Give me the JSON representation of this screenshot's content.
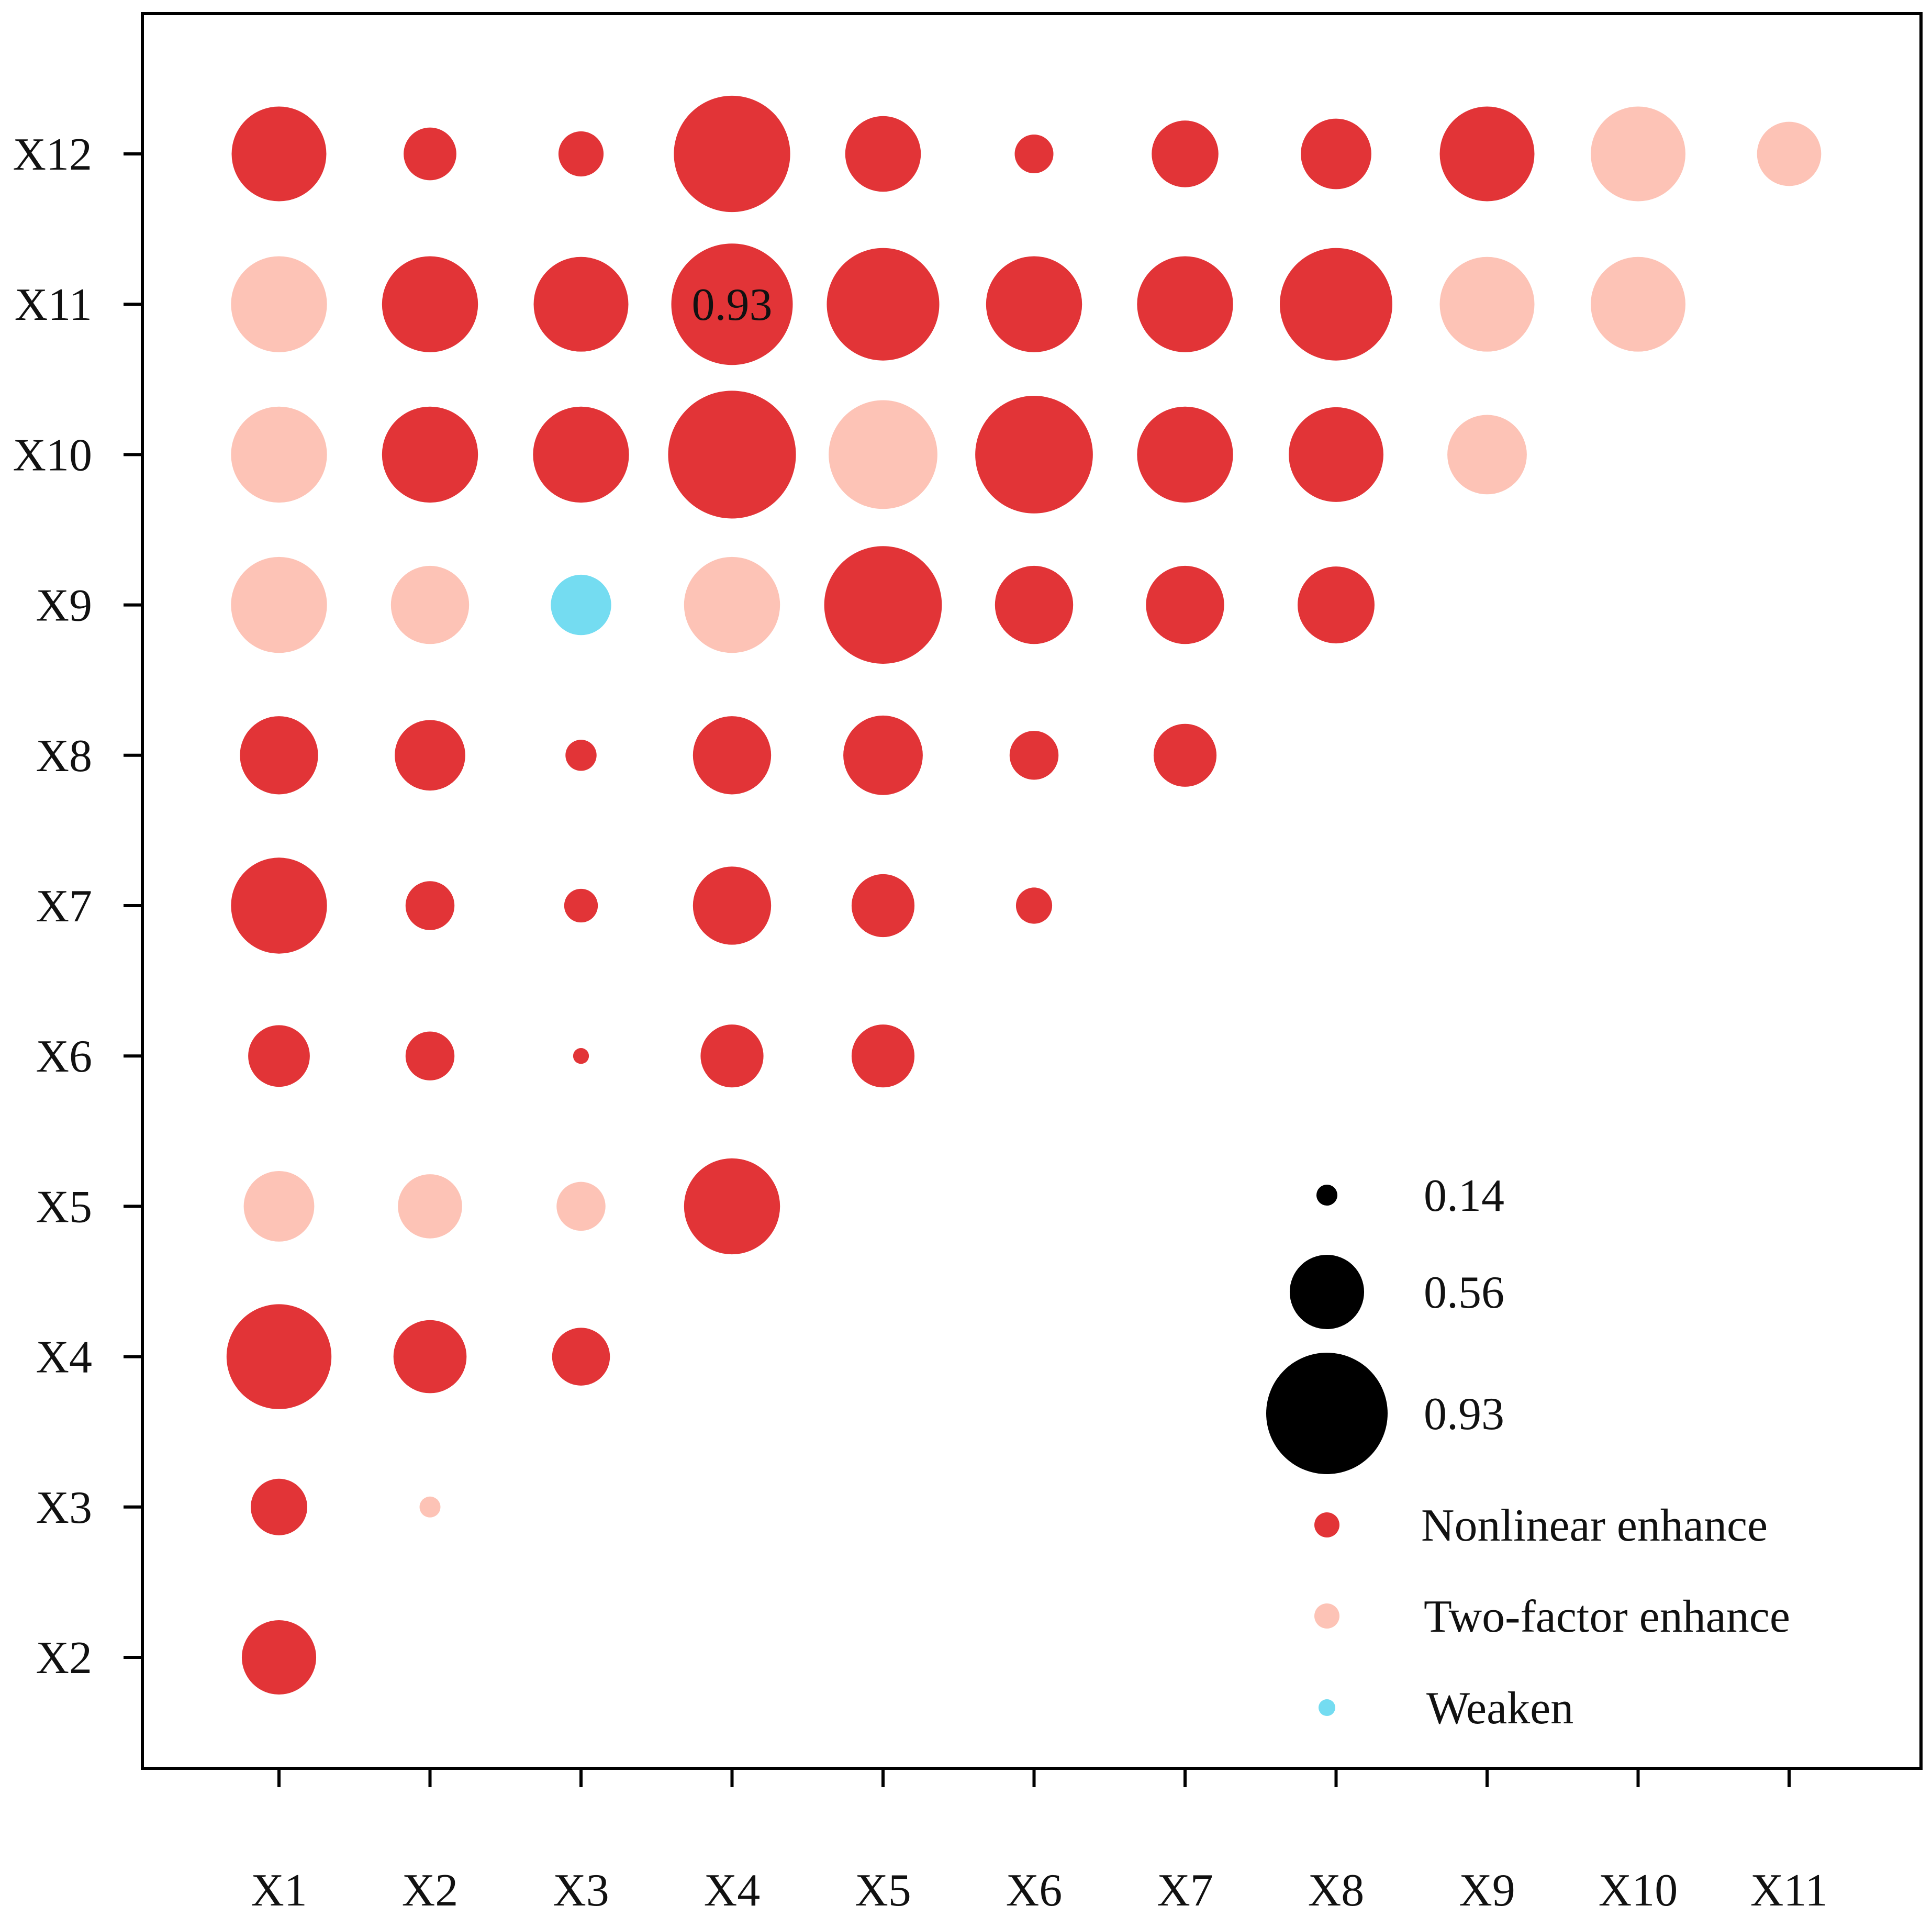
{
  "chart_data": {
    "type": "bubble-matrix",
    "title": "",
    "xlabel": "",
    "ylabel": "",
    "x_categories": [
      "X1",
      "X2",
      "X3",
      "X4",
      "X5",
      "X6",
      "X7",
      "X8",
      "X9",
      "X10",
      "X11"
    ],
    "y_categories": [
      "X2",
      "X3",
      "X4",
      "X5",
      "X6",
      "X7",
      "X8",
      "X9",
      "X10",
      "X11",
      "X12"
    ],
    "size_scale": {
      "min": 0.14,
      "max": 0.93
    },
    "colors": {
      "nonlinear": "#e23437",
      "two_factor": "#fdc3b6",
      "weaken": "#74dcf1"
    },
    "points": [
      {
        "x": "X1",
        "y": "X2",
        "value": 0.56,
        "type": "nonlinear"
      },
      {
        "x": "X1",
        "y": "X3",
        "value": 0.42,
        "type": "nonlinear"
      },
      {
        "x": "X2",
        "y": "X3",
        "value": 0.14,
        "type": "two_factor"
      },
      {
        "x": "X1",
        "y": "X4",
        "value": 0.8,
        "type": "nonlinear"
      },
      {
        "x": "X2",
        "y": "X4",
        "value": 0.55,
        "type": "nonlinear"
      },
      {
        "x": "X3",
        "y": "X4",
        "value": 0.43,
        "type": "nonlinear"
      },
      {
        "x": "X1",
        "y": "X5",
        "value": 0.53,
        "type": "two_factor"
      },
      {
        "x": "X2",
        "y": "X5",
        "value": 0.48,
        "type": "two_factor"
      },
      {
        "x": "X3",
        "y": "X5",
        "value": 0.36,
        "type": "two_factor"
      },
      {
        "x": "X4",
        "y": "X5",
        "value": 0.73,
        "type": "nonlinear"
      },
      {
        "x": "X1",
        "y": "X6",
        "value": 0.46,
        "type": "nonlinear"
      },
      {
        "x": "X2",
        "y": "X6",
        "value": 0.36,
        "type": "nonlinear"
      },
      {
        "x": "X3",
        "y": "X6",
        "value": 0.1,
        "type": "nonlinear"
      },
      {
        "x": "X4",
        "y": "X6",
        "value": 0.47,
        "type": "nonlinear"
      },
      {
        "x": "X5",
        "y": "X6",
        "value": 0.47,
        "type": "nonlinear"
      },
      {
        "x": "X1",
        "y": "X7",
        "value": 0.73,
        "type": "nonlinear"
      },
      {
        "x": "X2",
        "y": "X7",
        "value": 0.36,
        "type": "nonlinear"
      },
      {
        "x": "X3",
        "y": "X7",
        "value": 0.24,
        "type": "nonlinear"
      },
      {
        "x": "X4",
        "y": "X7",
        "value": 0.59,
        "type": "nonlinear"
      },
      {
        "x": "X5",
        "y": "X7",
        "value": 0.47,
        "type": "nonlinear"
      },
      {
        "x": "X6",
        "y": "X7",
        "value": 0.26,
        "type": "nonlinear"
      },
      {
        "x": "X1",
        "y": "X8",
        "value": 0.59,
        "type": "nonlinear"
      },
      {
        "x": "X2",
        "y": "X8",
        "value": 0.53,
        "type": "nonlinear"
      },
      {
        "x": "X3",
        "y": "X8",
        "value": 0.22,
        "type": "nonlinear"
      },
      {
        "x": "X4",
        "y": "X8",
        "value": 0.59,
        "type": "nonlinear"
      },
      {
        "x": "X5",
        "y": "X8",
        "value": 0.6,
        "type": "nonlinear"
      },
      {
        "x": "X6",
        "y": "X8",
        "value": 0.36,
        "type": "nonlinear"
      },
      {
        "x": "X7",
        "y": "X8",
        "value": 0.47,
        "type": "nonlinear"
      },
      {
        "x": "X1",
        "y": "X9",
        "value": 0.73,
        "type": "two_factor"
      },
      {
        "x": "X2",
        "y": "X9",
        "value": 0.59,
        "type": "two_factor"
      },
      {
        "x": "X3",
        "y": "X9",
        "value": 0.45,
        "type": "weaken"
      },
      {
        "x": "X4",
        "y": "X9",
        "value": 0.73,
        "type": "two_factor"
      },
      {
        "x": "X5",
        "y": "X9",
        "value": 0.9,
        "type": "nonlinear"
      },
      {
        "x": "X6",
        "y": "X9",
        "value": 0.59,
        "type": "nonlinear"
      },
      {
        "x": "X7",
        "y": "X9",
        "value": 0.59,
        "type": "nonlinear"
      },
      {
        "x": "X8",
        "y": "X9",
        "value": 0.58,
        "type": "nonlinear"
      },
      {
        "x": "X1",
        "y": "X10",
        "value": 0.73,
        "type": "two_factor"
      },
      {
        "x": "X2",
        "y": "X10",
        "value": 0.73,
        "type": "nonlinear"
      },
      {
        "x": "X3",
        "y": "X10",
        "value": 0.73,
        "type": "nonlinear"
      },
      {
        "x": "X4",
        "y": "X10",
        "value": 0.98,
        "type": "nonlinear"
      },
      {
        "x": "X5",
        "y": "X10",
        "value": 0.83,
        "type": "two_factor"
      },
      {
        "x": "X6",
        "y": "X10",
        "value": 0.9,
        "type": "nonlinear"
      },
      {
        "x": "X7",
        "y": "X10",
        "value": 0.73,
        "type": "nonlinear"
      },
      {
        "x": "X8",
        "y": "X10",
        "value": 0.72,
        "type": "nonlinear"
      },
      {
        "x": "X9",
        "y": "X10",
        "value": 0.6,
        "type": "two_factor"
      },
      {
        "x": "X1",
        "y": "X11",
        "value": 0.73,
        "type": "two_factor"
      },
      {
        "x": "X2",
        "y": "X11",
        "value": 0.73,
        "type": "nonlinear"
      },
      {
        "x": "X3",
        "y": "X11",
        "value": 0.72,
        "type": "nonlinear"
      },
      {
        "x": "X4",
        "y": "X11",
        "value": 0.93,
        "type": "nonlinear"
      },
      {
        "x": "X5",
        "y": "X11",
        "value": 0.86,
        "type": "nonlinear"
      },
      {
        "x": "X6",
        "y": "X11",
        "value": 0.73,
        "type": "nonlinear"
      },
      {
        "x": "X7",
        "y": "X11",
        "value": 0.73,
        "type": "nonlinear"
      },
      {
        "x": "X8",
        "y": "X11",
        "value": 0.86,
        "type": "nonlinear"
      },
      {
        "x": "X9",
        "y": "X11",
        "value": 0.72,
        "type": "two_factor"
      },
      {
        "x": "X10",
        "y": "X11",
        "value": 0.72,
        "type": "two_factor"
      },
      {
        "x": "X1",
        "y": "X12",
        "value": 0.72,
        "type": "nonlinear"
      },
      {
        "x": "X2",
        "y": "X12",
        "value": 0.39,
        "type": "nonlinear"
      },
      {
        "x": "X3",
        "y": "X12",
        "value": 0.33,
        "type": "nonlinear"
      },
      {
        "x": "X4",
        "y": "X12",
        "value": 0.89,
        "type": "nonlinear"
      },
      {
        "x": "X5",
        "y": "X12",
        "value": 0.57,
        "type": "nonlinear"
      },
      {
        "x": "X6",
        "y": "X12",
        "value": 0.28,
        "type": "nonlinear"
      },
      {
        "x": "X7",
        "y": "X12",
        "value": 0.5,
        "type": "nonlinear"
      },
      {
        "x": "X8",
        "y": "X12",
        "value": 0.53,
        "type": "nonlinear"
      },
      {
        "x": "X9",
        "y": "X12",
        "value": 0.72,
        "type": "nonlinear"
      },
      {
        "x": "X10",
        "y": "X12",
        "value": 0.72,
        "type": "two_factor"
      },
      {
        "x": "X11",
        "y": "X12",
        "value": 0.48,
        "type": "two_factor"
      }
    ],
    "annotation": {
      "text": "0.93",
      "x": "X4",
      "y": "X11"
    },
    "legend": {
      "position": "bottom-right",
      "size_entries": [
        {
          "label": "0.14",
          "value": 0.14
        },
        {
          "label": "0.56",
          "value": 0.56
        },
        {
          "label": "0.93",
          "value": 0.93
        }
      ],
      "color_entries": [
        {
          "label": "Nonlinear enhance",
          "type": "nonlinear"
        },
        {
          "label": "Two-factor enhance",
          "type": "two_factor"
        },
        {
          "label": "Weaken",
          "type": "weaken"
        }
      ]
    }
  }
}
